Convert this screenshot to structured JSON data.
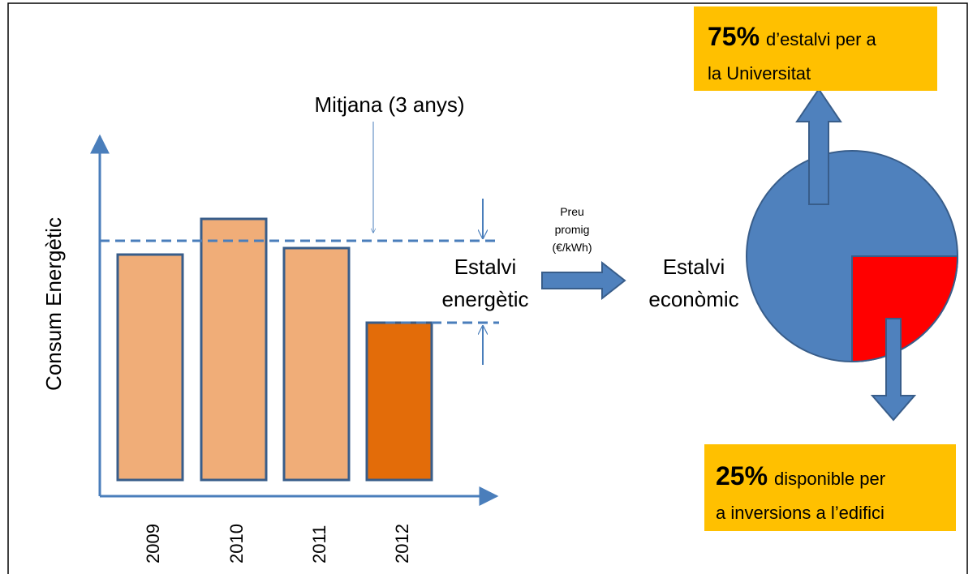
{
  "title": "Mitjana (3 anys)",
  "y_axis_label": "Consum Energètic",
  "years": [
    "2009",
    "2010",
    "2011",
    "2012"
  ],
  "savings_energy": [
    "Estalvi",
    "energètic"
  ],
  "price": [
    "Preu",
    "promig",
    "(€/kWh)"
  ],
  "savings_economic": [
    "Estalvi",
    "econòmic"
  ],
  "university_box": {
    "percent": "75%",
    "line1": "d’estalvi per a",
    "line2": "la Universitat"
  },
  "building_box": {
    "percent": "25%",
    "line1": "disponible per",
    "line2": "a inversions a l’edifici"
  }
}
